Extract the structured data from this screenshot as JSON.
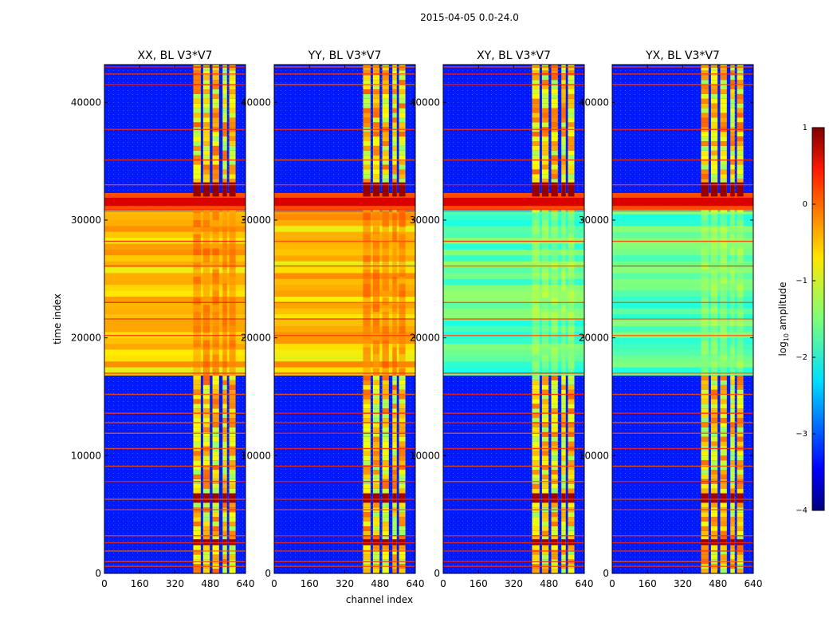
{
  "figure": {
    "suptitle": "2015-04-05 0.0-24.0",
    "xlabel": "channel index",
    "ylabel": "time index",
    "colorbar_label": "log10 amplitude",
    "colorbar_label_base": "log",
    "colorbar_label_sub": "10",
    "colorbar_label_rest": " amplitude"
  },
  "chart_data": {
    "type": "heatmap",
    "title": "2015-04-05 0.0-24.0",
    "xlabel": "channel index",
    "ylabel": "time index",
    "xlim": [
      0,
      640
    ],
    "ylim": [
      0,
      43200
    ],
    "xticks": [
      0,
      160,
      320,
      480,
      640
    ],
    "yticks": [
      0,
      10000,
      20000,
      30000,
      40000
    ],
    "colormap": "jet",
    "colorbar": {
      "label": "log10 amplitude",
      "range": [
        -4,
        1
      ],
      "ticks": [
        1,
        0,
        -1,
        -2,
        -3,
        -4
      ]
    },
    "panels": [
      {
        "title": "XX, BL V3*V7",
        "pol": "XX",
        "middle_level": "high"
      },
      {
        "title": "YY, BL V3*V7",
        "pol": "YY",
        "middle_level": "high"
      },
      {
        "title": "XY, BL V3*V7",
        "pol": "XY",
        "middle_level": "medium"
      },
      {
        "title": "YX, BL V3*V7",
        "pol": "YX",
        "middle_level": "medium"
      }
    ],
    "colors": {
      "background": "#1a3cff",
      "rfi_band": "#ffd700",
      "hot": "#800000"
    }
  }
}
